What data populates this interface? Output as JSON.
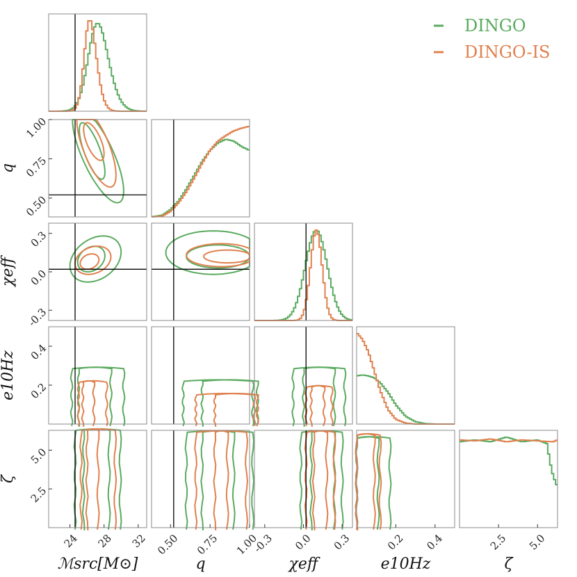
{
  "chart_data": {
    "type": "corner",
    "title": "",
    "colors": {
      "DINGO": "#5aaa5f",
      "DINGO-IS": "#e0804d",
      "truth": "#000000"
    },
    "legend": {
      "placement": "top-right",
      "entries": [
        "DINGO",
        "DINGO-IS"
      ]
    },
    "parameters": [
      {
        "key": "mc",
        "label": "ℳsrc[M⊙]",
        "range": [
          21.5,
          33.0
        ],
        "ticks": [
          24,
          28,
          32
        ],
        "tick_labels": [
          "24",
          "28",
          "32"
        ]
      },
      {
        "key": "q",
        "label": "q",
        "range": [
          0.38,
          1.0
        ],
        "ticks": [
          0.5,
          0.75,
          1.0
        ],
        "tick_labels": [
          "0.50",
          "0.75",
          "1.00"
        ]
      },
      {
        "key": "chi",
        "label": "χeff",
        "range": [
          -0.38,
          0.38
        ],
        "ticks": [
          -0.3,
          0.0,
          0.3
        ],
        "tick_labels": [
          "-0.3",
          "0.0",
          "0.3"
        ]
      },
      {
        "key": "e",
        "label": "e10Hz",
        "range": [
          0.0,
          0.5
        ],
        "ticks": [
          0.2,
          0.4
        ],
        "tick_labels": [
          "0.2",
          "0.4"
        ]
      },
      {
        "key": "zeta",
        "label": "ζ",
        "range": [
          0.0,
          6.28
        ],
        "ticks": [
          2.5,
          5.0
        ],
        "tick_labels": [
          "2.5",
          "5.0"
        ]
      }
    ],
    "y_tick_labels": {
      "q": [
        "0.50",
        "0.75",
        "1.00"
      ],
      "chi": [
        "-0.3",
        "0.0",
        "0.3"
      ],
      "e": [
        "0.2",
        "0.4"
      ],
      "zeta": [
        "2.5",
        "5.0"
      ]
    },
    "truth": {
      "mc": 24.6,
      "q": 0.52,
      "chi": 0.02,
      "e": null,
      "zeta": null
    },
    "marginals": {
      "mc": {
        "DINGO": {
          "mean": 26.4,
          "sd": 1.6,
          "skew": 1.3
        },
        "DINGO-IS": {
          "mean": 25.8,
          "sd": 1.0,
          "skew": 1.5
        }
      },
      "q": {
        "DINGO": {
          "points": [
            [
              0.38,
              0
            ],
            [
              0.45,
              0.02
            ],
            [
              0.5,
              0.08
            ],
            [
              0.55,
              0.17
            ],
            [
              0.6,
              0.3
            ],
            [
              0.65,
              0.45
            ],
            [
              0.7,
              0.6
            ],
            [
              0.75,
              0.72
            ],
            [
              0.8,
              0.8
            ],
            [
              0.85,
              0.84
            ],
            [
              0.9,
              0.82
            ],
            [
              0.95,
              0.76
            ],
            [
              1.0,
              0.72
            ]
          ]
        },
        "DINGO-IS": {
          "points": [
            [
              0.38,
              0
            ],
            [
              0.45,
              0.01
            ],
            [
              0.5,
              0.06
            ],
            [
              0.55,
              0.15
            ],
            [
              0.6,
              0.27
            ],
            [
              0.65,
              0.42
            ],
            [
              0.7,
              0.58
            ],
            [
              0.75,
              0.72
            ],
            [
              0.8,
              0.82
            ],
            [
              0.85,
              0.88
            ],
            [
              0.9,
              0.93
            ],
            [
              0.95,
              0.96
            ],
            [
              1.0,
              0.98
            ]
          ]
        }
      },
      "chi": {
        "DINGO": {
          "mean": 0.1,
          "sd": 0.085,
          "skew": 0
        },
        "DINGO-IS": {
          "mean": 0.1,
          "sd": 0.045,
          "skew": 0
        }
      },
      "e": {
        "DINGO": {
          "points": [
            [
              0.0,
              0.5
            ],
            [
              0.03,
              0.51
            ],
            [
              0.06,
              0.5
            ],
            [
              0.09,
              0.48
            ],
            [
              0.12,
              0.43
            ],
            [
              0.16,
              0.33
            ],
            [
              0.2,
              0.2
            ],
            [
              0.25,
              0.08
            ],
            [
              0.3,
              0.025
            ],
            [
              0.35,
              0.005
            ],
            [
              0.4,
              0
            ],
            [
              0.5,
              0
            ]
          ]
        },
        "DINGO-IS": {
          "points": [
            [
              0.0,
              0.95
            ],
            [
              0.03,
              0.88
            ],
            [
              0.06,
              0.75
            ],
            [
              0.09,
              0.55
            ],
            [
              0.12,
              0.35
            ],
            [
              0.16,
              0.15
            ],
            [
              0.2,
              0.05
            ],
            [
              0.25,
              0.01
            ],
            [
              0.3,
              0
            ],
            [
              0.5,
              0
            ]
          ]
        }
      },
      "zeta": {
        "DINGO": {
          "points": [
            [
              0.0,
              0.9
            ],
            [
              1.0,
              0.92
            ],
            [
              2.0,
              0.9
            ],
            [
              3.0,
              0.95
            ],
            [
              4.0,
              0.9
            ],
            [
              5.0,
              0.92
            ],
            [
              5.6,
              0.88
            ],
            [
              5.9,
              0.6
            ],
            [
              6.2,
              0.45
            ],
            [
              6.28,
              0.45
            ]
          ]
        },
        "DINGO-IS": {
          "points": [
            [
              0.0,
              0.92
            ],
            [
              1.0,
              0.91
            ],
            [
              2.0,
              0.93
            ],
            [
              3.0,
              0.9
            ],
            [
              4.0,
              0.92
            ],
            [
              5.0,
              0.91
            ],
            [
              6.0,
              0.9
            ],
            [
              6.28,
              0.92
            ]
          ]
        }
      }
    },
    "joints": [
      {
        "x": "mc",
        "y": "q",
        "contours": {
          "DINGO": [
            [
              26.6,
              0.8,
              1.5,
              0.18,
              -0.75
            ],
            [
              27.3,
              0.77,
              3.0,
              0.3,
              -0.75
            ]
          ],
          "DINGO-IS": [
            [
              26.8,
              0.86,
              1.2,
              0.12,
              -0.65
            ],
            [
              27.1,
              0.82,
              2.3,
              0.25,
              -0.7
            ]
          ]
        }
      },
      {
        "x": "mc",
        "y": "chi",
        "contours": {
          "DINGO": [
            [
              26.5,
              0.1,
              1.6,
              0.1,
              0.25
            ],
            [
              27.0,
              0.1,
              3.0,
              0.18,
              0.3
            ]
          ],
          "DINGO-IS": [
            [
              26.3,
              0.08,
              1.1,
              0.06,
              0.25
            ],
            [
              26.7,
              0.09,
              2.1,
              0.11,
              0.25
            ]
          ]
        }
      },
      {
        "x": "q",
        "y": "chi",
        "contours": {
          "DINGO": [
            [
              0.8,
              0.12,
              0.2,
              0.09,
              0
            ],
            [
              0.77,
              0.15,
              0.3,
              0.17,
              0
            ]
          ],
          "DINGO-IS": [
            [
              0.86,
              0.12,
              0.15,
              0.05,
              0
            ],
            [
              0.82,
              0.13,
              0.22,
              0.09,
              0
            ]
          ]
        }
      }
    ]
  }
}
